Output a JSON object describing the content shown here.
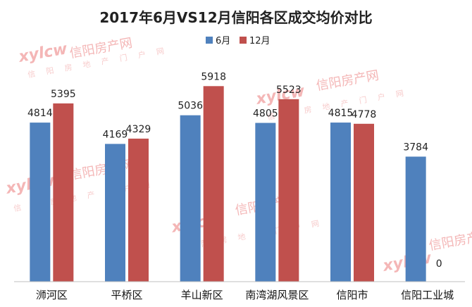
{
  "chart_data": {
    "type": "bar",
    "title": "2017年6月VS12月信阳各区成交均价对比",
    "categories": [
      "浉河区",
      "平桥区",
      "羊山新区",
      "南湾湖风景区",
      "信阳市",
      "信阳工业城"
    ],
    "series": [
      {
        "name": "6月",
        "color": "#4f81bd",
        "values": [
          4814,
          4169,
          5036,
          4805,
          4815,
          3784
        ]
      },
      {
        "name": "12月",
        "color": "#c0504d",
        "values": [
          5395,
          4329,
          5918,
          5523,
          4778,
          0
        ]
      }
    ],
    "ylim": [
      0,
      6500
    ],
    "legend_position": "top",
    "grid": false
  },
  "watermark": {
    "logo": "xylcw",
    "text": "信阳房产网",
    "sub": "信 阳 房 地 产 门 户 网",
    "domain": ".com"
  }
}
